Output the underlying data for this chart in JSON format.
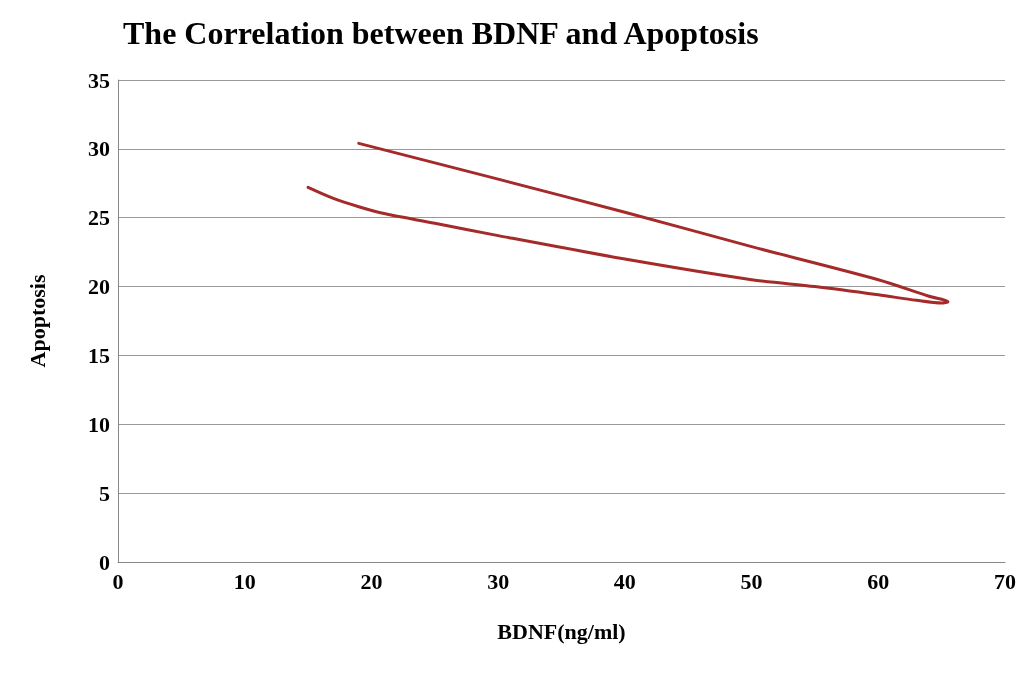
{
  "chart_data": {
    "type": "line",
    "title": "The Correlation between BDNF and Apoptosis",
    "xlabel": "BDNF(ng/ml)",
    "ylabel": "Apoptosis",
    "series": [
      {
        "color": "#a52a2a",
        "x": [
          15,
          17,
          19,
          21,
          25,
          30,
          40,
          50,
          55,
          60,
          63,
          65,
          65.5,
          64,
          60,
          50,
          40,
          30,
          19
        ],
        "values": [
          27.2,
          26.4,
          25.8,
          25.3,
          24.6,
          23.7,
          22.0,
          20.5,
          20.0,
          19.4,
          19.0,
          18.8,
          18.9,
          19.3,
          20.5,
          22.9,
          25.4,
          27.8,
          30.4
        ]
      }
    ],
    "xlim": [
      0,
      70
    ],
    "xticks": [
      0,
      10,
      20,
      30,
      40,
      50,
      60,
      70
    ],
    "ylim": [
      0,
      35
    ],
    "yticks": [
      0,
      5,
      10,
      15,
      20,
      25,
      30,
      35
    ],
    "grid": "y",
    "marker": "none",
    "line_style": "solid"
  }
}
